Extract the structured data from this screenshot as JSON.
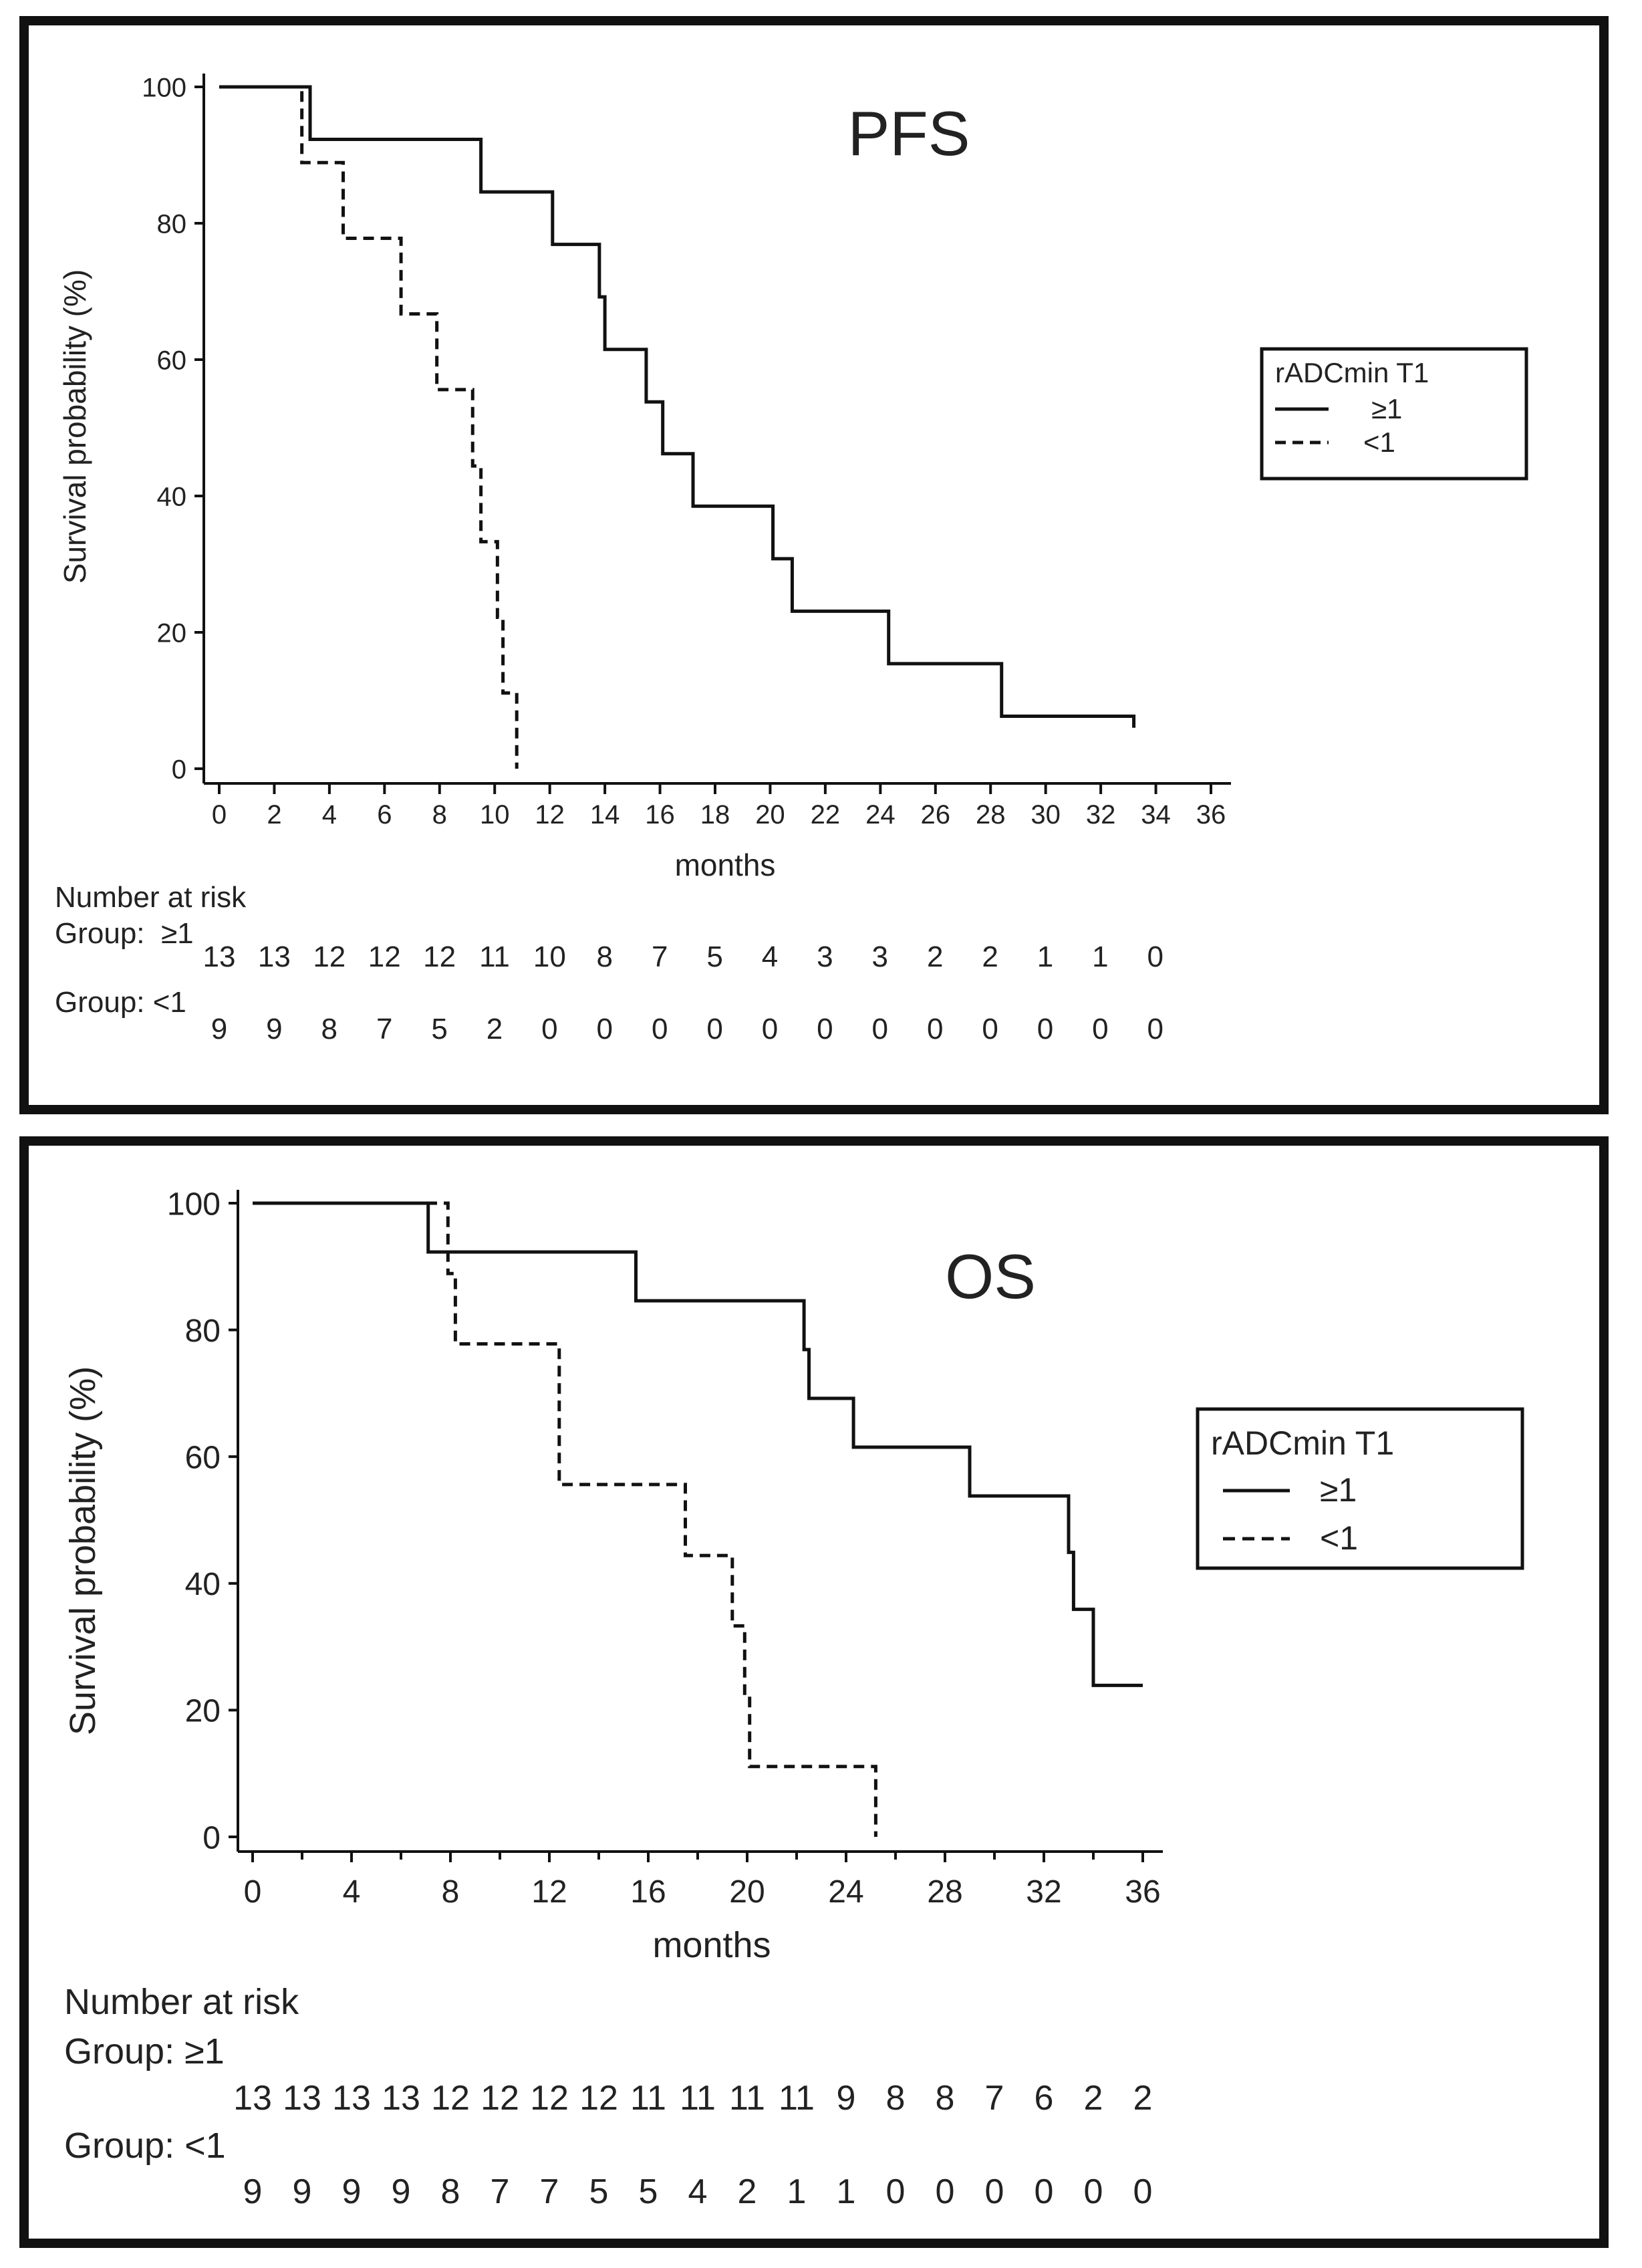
{
  "colors": {
    "frame": "#111111",
    "line": "#111111",
    "text": "#222222",
    "background": "#ffffff"
  },
  "chart_data": [
    {
      "type": "line",
      "subtype": "kaplan-meier",
      "title": "PFS",
      "xlabel": "months",
      "ylabel": "Survival probability (%)",
      "xlim": [
        0,
        36
      ],
      "ylim": [
        0,
        100
      ],
      "x_ticks": [
        0,
        2,
        4,
        6,
        8,
        10,
        12,
        14,
        16,
        18,
        20,
        22,
        24,
        26,
        28,
        30,
        32,
        34,
        36
      ],
      "y_ticks": [
        0,
        20,
        40,
        60,
        80,
        100
      ],
      "legend": {
        "title": "rADCmin T1",
        "position": "right"
      },
      "series": [
        {
          "name": "≥1",
          "style": "solid",
          "x": [
            0,
            3.3,
            3.3,
            9.5,
            9.5,
            12.1,
            12.1,
            13.8,
            13.8,
            14.0,
            14.0,
            15.5,
            15.5,
            16.1,
            16.1,
            17.2,
            17.2,
            20.1,
            20.1,
            20.8,
            20.8,
            24.3,
            24.3,
            28.4,
            28.4,
            33.2,
            33.2
          ],
          "y": [
            100,
            100,
            92.3,
            92.3,
            84.6,
            84.6,
            76.9,
            76.9,
            69.2,
            69.2,
            61.5,
            61.5,
            53.8,
            53.8,
            46.2,
            46.2,
            38.5,
            38.5,
            30.8,
            30.8,
            23.1,
            23.1,
            15.4,
            15.4,
            7.7,
            7.7,
            6
          ]
        },
        {
          "name": "<1",
          "style": "dashed",
          "x": [
            0,
            3.0,
            3.0,
            4.5,
            4.5,
            6.6,
            6.6,
            7.9,
            7.9,
            9.2,
            9.2,
            9.5,
            9.5,
            9.7,
            9.7,
            10.1,
            10.1,
            10.3,
            10.3,
            10.8,
            10.8
          ],
          "y": [
            100,
            100,
            88.9,
            88.9,
            77.8,
            77.8,
            66.7,
            66.7,
            55.6,
            55.6,
            44.4,
            44.4,
            33.3,
            33.3,
            33.3,
            33.3,
            22.2,
            22.2,
            11.1,
            11.1,
            0
          ]
        }
      ],
      "risk_table": {
        "heading": "Number at risk",
        "groups": [
          {
            "label": "Group:  ≥1",
            "values": [
              "13",
              "13",
              "12",
              "12",
              "12",
              "11",
              "10",
              "8",
              "7",
              "5",
              "4",
              "3",
              "3",
              "2",
              "2",
              "1",
              "1",
              "0"
            ]
          },
          {
            "label": "Group: <1",
            "values": [
              "9",
              "9",
              "8",
              "7",
              "5",
              "2",
              "0",
              "0",
              "0",
              "0",
              "0",
              "0",
              "0",
              "0",
              "0",
              "0",
              "0",
              "0"
            ]
          }
        ]
      }
    },
    {
      "type": "line",
      "subtype": "kaplan-meier",
      "title": "OS",
      "xlabel": "months",
      "ylabel": "Survival probability (%)",
      "xlim": [
        0,
        36
      ],
      "ylim": [
        0,
        100
      ],
      "x_ticks": [
        0,
        4,
        8,
        12,
        16,
        20,
        24,
        28,
        32,
        36
      ],
      "y_ticks": [
        0,
        20,
        40,
        60,
        80,
        100
      ],
      "legend": {
        "title": "rADCmin T1",
        "position": "right"
      },
      "series": [
        {
          "name": "≥1",
          "style": "solid",
          "x": [
            0,
            7.1,
            7.1,
            15.5,
            15.5,
            22.3,
            22.3,
            22.5,
            22.5,
            24.3,
            24.3,
            29.0,
            29.0,
            33.0,
            33.0,
            33.2,
            33.2,
            34.0,
            34.0,
            36.0
          ],
          "y": [
            100,
            100,
            92.3,
            92.3,
            84.6,
            84.6,
            76.9,
            76.9,
            69.2,
            69.2,
            61.5,
            61.5,
            53.8,
            53.8,
            44.9,
            44.9,
            35.9,
            35.9,
            23.9,
            23.9
          ]
        },
        {
          "name": "<1",
          "style": "dashed",
          "x": [
            0,
            7.9,
            7.9,
            8.2,
            8.2,
            12.4,
            12.4,
            17.5,
            17.5,
            19.4,
            19.4,
            19.9,
            19.9,
            20.1,
            20.1,
            25.2,
            25.2
          ],
          "y": [
            100,
            100,
            88.9,
            88.9,
            77.8,
            77.8,
            55.6,
            55.6,
            44.4,
            44.4,
            33.3,
            33.3,
            22.2,
            22.2,
            11.1,
            11.1,
            0
          ]
        }
      ],
      "risk_table": {
        "heading": "Number at risk",
        "groups": [
          {
            "label": "Group: ≥1",
            "values": [
              "13",
              "13",
              "13",
              "13",
              "12",
              "12",
              "12",
              "12",
              "11",
              "11",
              "11",
              "11",
              "9",
              "8",
              "8",
              "7",
              "6",
              "2",
              "2"
            ]
          },
          {
            "label": "Group: <1",
            "values": [
              "9",
              "9",
              "9",
              "9",
              "8",
              "7",
              "7",
              "5",
              "5",
              "4",
              "2",
              "1",
              "1",
              "0",
              "0",
              "0",
              "0",
              "0",
              "0"
            ]
          }
        ]
      }
    }
  ]
}
